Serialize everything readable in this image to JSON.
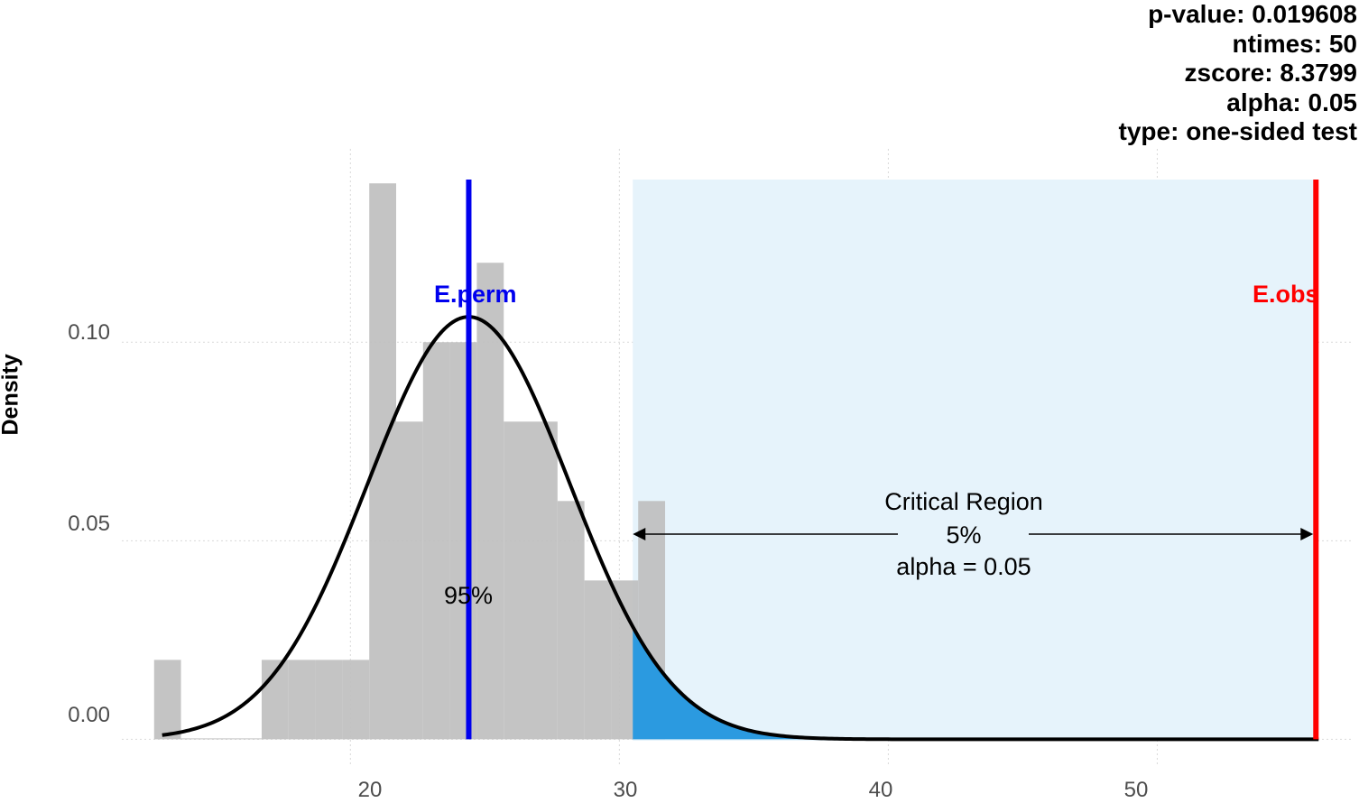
{
  "stats": {
    "pvalue": "p-value: 0.019608",
    "ntimes": "ntimes: 50",
    "zscore": "zscore: 8.3799",
    "alpha": "alpha: 0.05",
    "type": "type: one-sided test"
  },
  "chart_data": {
    "type": "bar",
    "ylabel": "Density",
    "xlabel": "",
    "xlim": [
      11.5,
      57.3
    ],
    "ylim": [
      -0.0065,
      0.143
    ],
    "x_ticks": [
      "20",
      "30",
      "40",
      "50"
    ],
    "y_ticks": [
      "0.00",
      "0.05",
      "0.10"
    ],
    "grid": true,
    "bin_width": 1.0,
    "bars": [
      {
        "x_start": 12.7,
        "density": 0.02
      },
      {
        "x_start": 13.7,
        "density": 0.0
      },
      {
        "x_start": 14.7,
        "density": 0.0
      },
      {
        "x_start": 15.7,
        "density": 0.0
      },
      {
        "x_start": 16.7,
        "density": 0.02
      },
      {
        "x_start": 17.7,
        "density": 0.02
      },
      {
        "x_start": 18.7,
        "density": 0.02
      },
      {
        "x_start": 19.7,
        "density": 0.02
      },
      {
        "x_start": 20.7,
        "density": 0.14
      },
      {
        "x_start": 21.7,
        "density": 0.08
      },
      {
        "x_start": 22.7,
        "density": 0.1
      },
      {
        "x_start": 23.7,
        "density": 0.1
      },
      {
        "x_start": 24.7,
        "density": 0.12
      },
      {
        "x_start": 25.7,
        "density": 0.08
      },
      {
        "x_start": 26.7,
        "density": 0.08
      },
      {
        "x_start": 27.7,
        "density": 0.06
      },
      {
        "x_start": 28.7,
        "density": 0.04
      },
      {
        "x_start": 29.7,
        "density": 0.04
      },
      {
        "x_start": 30.7,
        "density": 0.06
      }
    ],
    "density_curve": {
      "distribution": "normal",
      "mean": 24.4,
      "sd": 3.75,
      "x_from": 13.0,
      "x_to": 56.0
    },
    "e_perm": {
      "label": "E.perm",
      "x": 24.4,
      "color": "#0000ee"
    },
    "e_obs": {
      "label": "E.obs",
      "x": 55.9,
      "color": "#ff0000"
    },
    "critical_region": {
      "x_from": 30.5,
      "x_to": 55.9,
      "fill": "#e6f3fb",
      "tail_fill": "#2b9ae0",
      "label_lines": [
        "Critical Region",
        "5%",
        "alpha = 0.05"
      ]
    },
    "acceptance_label": "95%"
  }
}
